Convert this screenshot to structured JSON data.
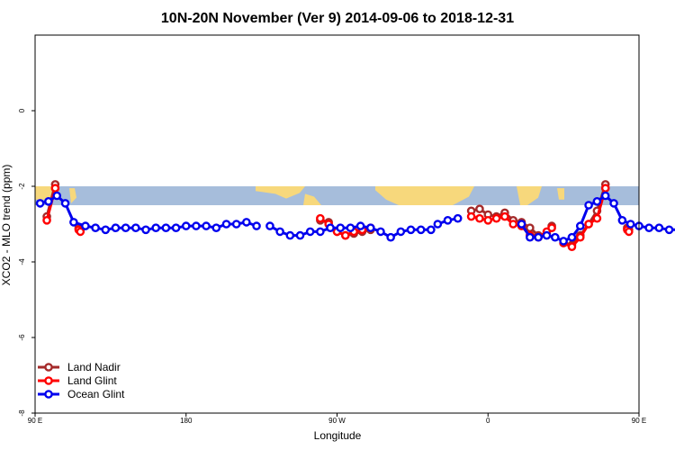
{
  "chart_data": {
    "type": "line",
    "title": "10N-20N November (Ver 9)   2014-09-06 to 2018-12-31",
    "xlabel": "Longitude",
    "ylabel": "XCO2 - MLO trend (ppm)",
    "xlim": [
      90,
      450
    ],
    "ylim": [
      -8,
      2
    ],
    "x_ticks": [
      {
        "value": 90,
        "label": "90 E"
      },
      {
        "value": 180,
        "label": "180"
      },
      {
        "value": 270,
        "label": "90 W"
      },
      {
        "value": 360,
        "label": "0"
      },
      {
        "value": 450,
        "label": "90 E"
      },
      {
        "value": 540,
        "label": "180"
      }
    ],
    "y_ticks": [
      {
        "value": 0,
        "label": "0"
      },
      {
        "value": -2,
        "label": "-2"
      },
      {
        "value": -4,
        "label": "-4"
      },
      {
        "value": -6,
        "label": "-6"
      },
      {
        "value": -8,
        "label": "-8"
      }
    ],
    "map_strip": {
      "y_range": [
        -2.5,
        -2.0
      ],
      "ocean_color": "#a6bddb",
      "land_color": "#f7d87c"
    },
    "legend_position": "bottom-left",
    "series": [
      {
        "name": "Land Nadir",
        "color": "#a52a2a",
        "segments": [
          [
            [
              97,
              -2.8
            ],
            [
              102,
              -1.95
            ]
          ],
          [
            [
              116,
              -3.1
            ],
            [
              117,
              -3.15
            ]
          ],
          [
            [
              260,
              -2.9
            ],
            [
              265,
              -2.95
            ],
            [
              270,
              -3.2
            ],
            [
              275,
              -3.3
            ],
            [
              280,
              -3.25
            ],
            [
              285,
              -3.2
            ],
            [
              290,
              -3.15
            ]
          ],
          [
            [
              350,
              -2.65
            ],
            [
              355,
              -2.6
            ],
            [
              360,
              -2.75
            ],
            [
              365,
              -2.8
            ],
            [
              370,
              -2.7
            ],
            [
              375,
              -2.9
            ],
            [
              380,
              -2.95
            ],
            [
              385,
              -3.1
            ],
            [
              390,
              -3.3
            ],
            [
              395,
              -3.25
            ],
            [
              398,
              -3.05
            ]
          ],
          [
            [
              405,
              -3.5
            ],
            [
              410,
              -3.55
            ],
            [
              415,
              -3.3
            ],
            [
              420,
              -3.0
            ],
            [
              425,
              -2.65
            ],
            [
              430,
              -1.95
            ]
          ],
          [
            [
              443,
              -3.1
            ],
            [
              444,
              -3.15
            ]
          ]
        ]
      },
      {
        "name": "Land Glint",
        "color": "#ff0000",
        "segments": [
          [
            [
              97,
              -2.9
            ],
            [
              102,
              -2.05
            ]
          ],
          [
            [
              116,
              -3.15
            ],
            [
              117,
              -3.2
            ]
          ],
          [
            [
              260,
              -2.85
            ],
            [
              265,
              -3.0
            ],
            [
              270,
              -3.2
            ],
            [
              275,
              -3.3
            ],
            [
              280,
              -3.2
            ],
            [
              285,
              -3.15
            ],
            [
              290,
              -3.1
            ]
          ],
          [
            [
              350,
              -2.8
            ],
            [
              355,
              -2.85
            ],
            [
              360,
              -2.9
            ],
            [
              365,
              -2.85
            ],
            [
              370,
              -2.8
            ],
            [
              375,
              -3.0
            ],
            [
              380,
              -3.05
            ],
            [
              385,
              -3.3
            ],
            [
              390,
              -3.35
            ],
            [
              395,
              -3.2
            ],
            [
              398,
              -3.1
            ]
          ],
          [
            [
              405,
              -3.5
            ],
            [
              410,
              -3.6
            ],
            [
              415,
              -3.35
            ],
            [
              420,
              -3.0
            ],
            [
              425,
              -2.85
            ],
            [
              430,
              -2.05
            ]
          ],
          [
            [
              443,
              -3.15
            ],
            [
              444,
              -3.2
            ]
          ]
        ]
      },
      {
        "name": "Ocean Glint",
        "color": "#0000ee",
        "segments": [
          [
            [
              93,
              -2.45
            ],
            [
              98,
              -2.4
            ],
            [
              103,
              -2.25
            ],
            [
              108,
              -2.45
            ],
            [
              113,
              -2.95
            ],
            [
              120,
              -3.05
            ],
            [
              126,
              -3.1
            ],
            [
              132,
              -3.15
            ],
            [
              138,
              -3.1
            ],
            [
              144,
              -3.1
            ],
            [
              150,
              -3.1
            ],
            [
              156,
              -3.15
            ],
            [
              162,
              -3.1
            ],
            [
              168,
              -3.1
            ],
            [
              174,
              -3.1
            ],
            [
              180,
              -3.05
            ],
            [
              186,
              -3.05
            ],
            [
              192,
              -3.05
            ],
            [
              198,
              -3.1
            ],
            [
              204,
              -3.0
            ],
            [
              210,
              -3.0
            ],
            [
              216,
              -2.95
            ],
            [
              222,
              -3.05
            ]
          ],
          [
            [
              230,
              -3.05
            ],
            [
              236,
              -3.2
            ],
            [
              242,
              -3.3
            ],
            [
              248,
              -3.3
            ],
            [
              254,
              -3.2
            ],
            [
              260,
              -3.2
            ],
            [
              266,
              -3.1
            ],
            [
              272,
              -3.1
            ],
            [
              278,
              -3.1
            ],
            [
              284,
              -3.05
            ],
            [
              290,
              -3.1
            ],
            [
              296,
              -3.2
            ],
            [
              302,
              -3.35
            ],
            [
              308,
              -3.2
            ],
            [
              314,
              -3.15
            ],
            [
              320,
              -3.15
            ],
            [
              326,
              -3.15
            ]
          ],
          [
            [
              330,
              -3.0
            ],
            [
              336,
              -2.9
            ],
            [
              342,
              -2.85
            ]
          ],
          [
            [
              380,
              -3.0
            ],
            [
              385,
              -3.35
            ],
            [
              390,
              -3.35
            ],
            [
              395,
              -3.3
            ],
            [
              400,
              -3.35
            ],
            [
              405,
              -3.45
            ],
            [
              410,
              -3.35
            ],
            [
              415,
              -3.05
            ],
            [
              420,
              -2.5
            ],
            [
              425,
              -2.4
            ],
            [
              430,
              -2.25
            ],
            [
              435,
              -2.45
            ],
            [
              440,
              -2.9
            ],
            [
              445,
              -3.0
            ],
            [
              450,
              -3.05
            ],
            [
              456,
              -3.1
            ],
            [
              462,
              -3.1
            ],
            [
              468,
              -3.15
            ],
            [
              474,
              -3.15
            ],
            [
              480,
              -3.15
            ]
          ]
        ]
      }
    ]
  }
}
